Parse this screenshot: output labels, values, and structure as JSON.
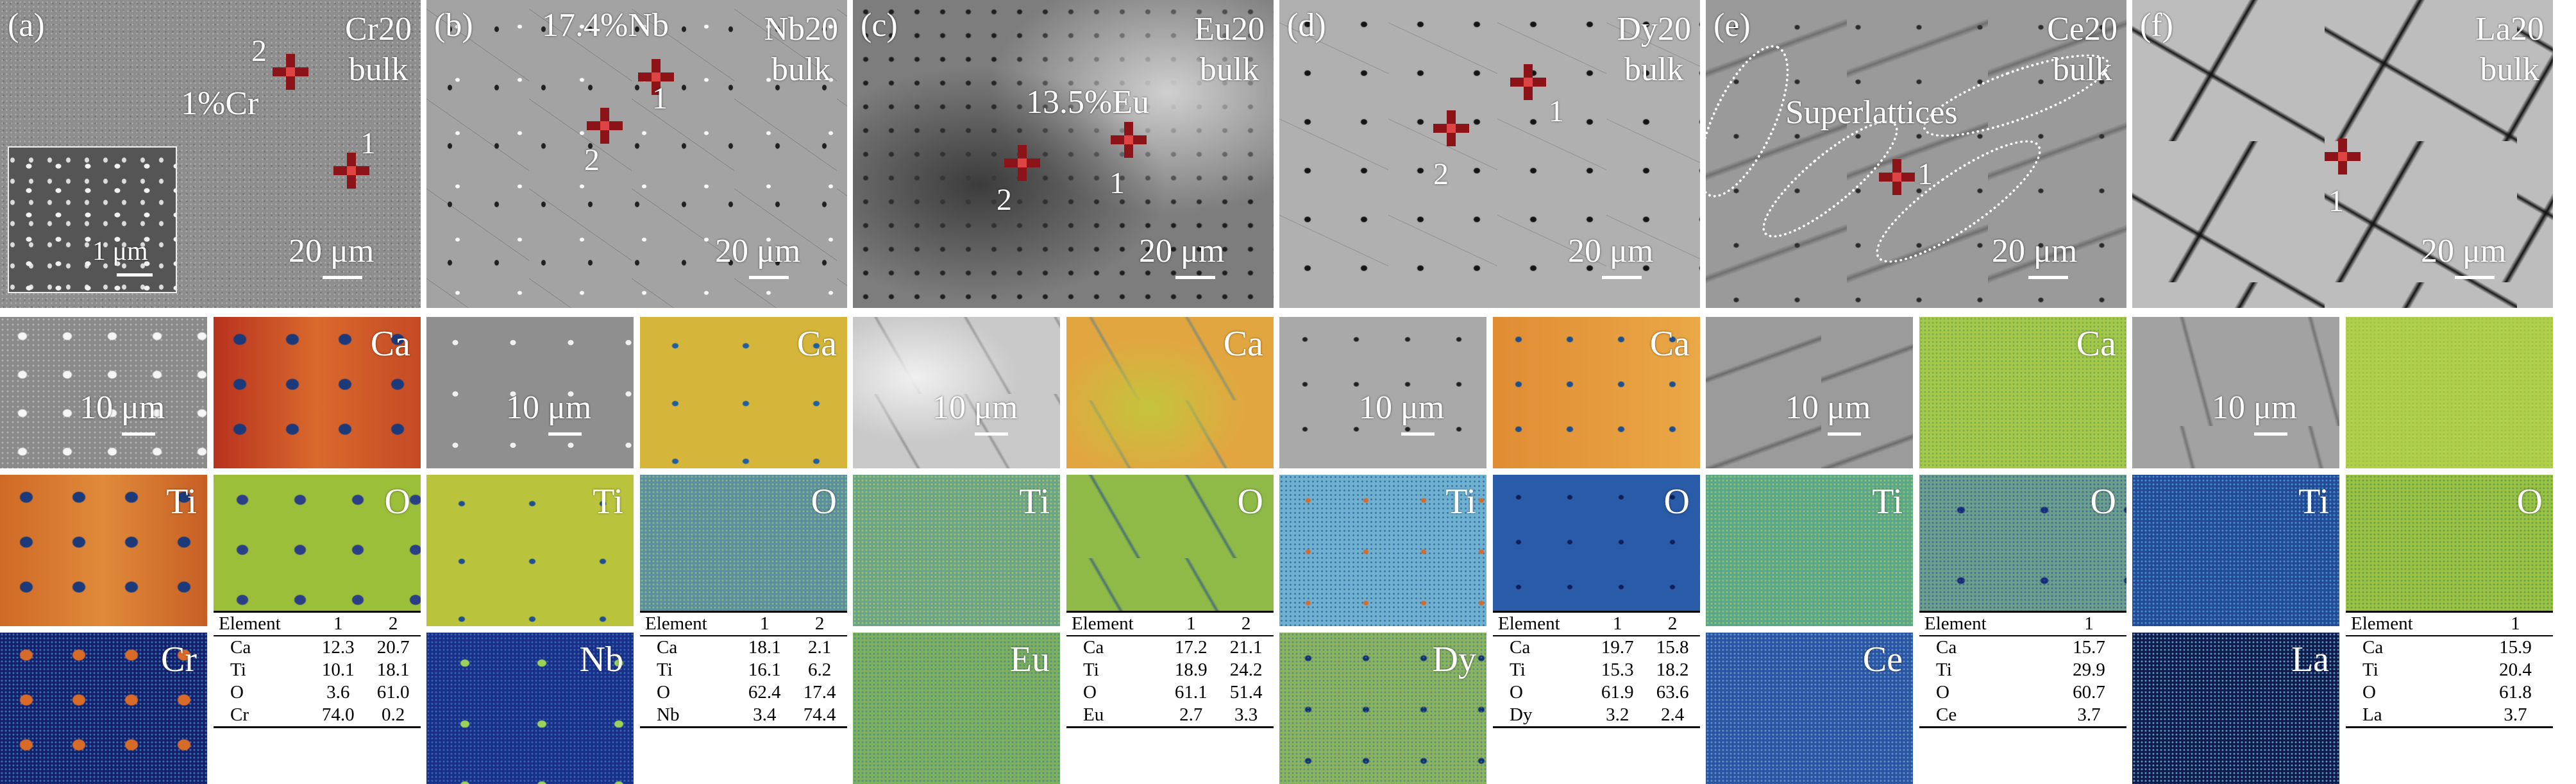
{
  "colors": {
    "marker": "#8c1418",
    "text_overlay": "#ffffff"
  },
  "panels": [
    {
      "label": "(a)",
      "title_line1": "Cr20",
      "title_line2": "bulk",
      "scale": "20 μm",
      "map_scale": "10 μm",
      "annot": "1%Cr",
      "inset_scale": "1 μm",
      "markers": [
        {
          "num": "2"
        },
        {
          "num": "1"
        }
      ],
      "maps": [
        "Ca",
        "Ti",
        "O",
        "Cr"
      ],
      "table": {
        "header": [
          "Element",
          "1",
          "2"
        ],
        "rows": [
          [
            "Ca",
            "12.3",
            "20.7"
          ],
          [
            "Ti",
            "10.1",
            "18.1"
          ],
          [
            "O",
            "3.6",
            "61.0"
          ],
          [
            "Cr",
            "74.0",
            "0.2"
          ]
        ]
      }
    },
    {
      "label": "(b)",
      "title_line1": "Nb20",
      "title_line2": "bulk",
      "scale": "20 μm",
      "map_scale": "10 μm",
      "annot": "17.4%Nb",
      "markers": [
        {
          "num": "1"
        },
        {
          "num": "2"
        }
      ],
      "maps": [
        "Ca",
        "Ti",
        "O",
        "Nb"
      ],
      "table": {
        "header": [
          "Element",
          "1",
          "2"
        ],
        "rows": [
          [
            "Ca",
            "18.1",
            "2.1"
          ],
          [
            "Ti",
            "16.1",
            "6.2"
          ],
          [
            "O",
            "62.4",
            "17.4"
          ],
          [
            "Nb",
            "3.4",
            "74.4"
          ]
        ]
      }
    },
    {
      "label": "(c)",
      "title_line1": "Eu20",
      "title_line2": "bulk",
      "scale": "20 μm",
      "map_scale": "10 μm",
      "annot": "13.5%Eu",
      "markers": [
        {
          "num": "2"
        },
        {
          "num": "1"
        }
      ],
      "maps": [
        "Ca",
        "Ti",
        "O",
        "Eu"
      ],
      "table": {
        "header": [
          "Element",
          "1",
          "2"
        ],
        "rows": [
          [
            "Ca",
            "17.2",
            "21.1"
          ],
          [
            "Ti",
            "18.9",
            "24.2"
          ],
          [
            "O",
            "61.1",
            "51.4"
          ],
          [
            "Eu",
            "2.7",
            "3.3"
          ]
        ]
      }
    },
    {
      "label": "(d)",
      "title_line1": "Dy20",
      "title_line2": "bulk",
      "scale": "20 μm",
      "map_scale": "10 μm",
      "markers": [
        {
          "num": "1"
        },
        {
          "num": "2"
        }
      ],
      "maps": [
        "Ca",
        "Ti",
        "O",
        "Dy"
      ],
      "table": {
        "header": [
          "Element",
          "1",
          "2"
        ],
        "rows": [
          [
            "Ca",
            "19.7",
            "15.8"
          ],
          [
            "Ti",
            "15.3",
            "18.2"
          ],
          [
            "O",
            "61.9",
            "63.6"
          ],
          [
            "Dy",
            "3.2",
            "2.4"
          ]
        ]
      }
    },
    {
      "label": "(e)",
      "title_line1": "Ce20",
      "title_line2": "bulk",
      "scale": "20 μm",
      "map_scale": "10 μm",
      "annot": "Superlattices",
      "markers": [
        {
          "num": "1"
        }
      ],
      "maps": [
        "Ca",
        "Ti",
        "O",
        "Ce"
      ],
      "table": {
        "header": [
          "Element",
          "1"
        ],
        "rows": [
          [
            "Ca",
            "15.7"
          ],
          [
            "Ti",
            "29.9"
          ],
          [
            "O",
            "60.7"
          ],
          [
            "Ce",
            "3.7"
          ]
        ]
      }
    },
    {
      "label": "(f)",
      "title_line1": "La20",
      "title_line2": "bulk",
      "scale": "20 μm",
      "map_scale": "10 μm",
      "markers": [
        {
          "num": "1"
        }
      ],
      "maps": [
        "",
        "Ti",
        "O",
        "La"
      ],
      "table": {
        "header": [
          "Element",
          "1"
        ],
        "rows": [
          [
            "Ca",
            "15.9"
          ],
          [
            "Ti",
            "20.4"
          ],
          [
            "O",
            "61.8"
          ],
          [
            "La",
            "3.7"
          ]
        ]
      }
    }
  ]
}
